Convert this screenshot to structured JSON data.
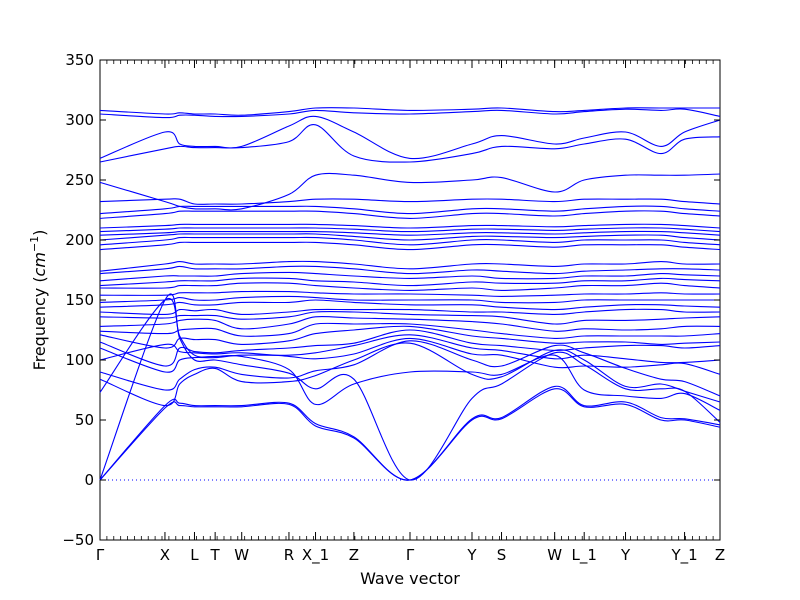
{
  "chart_data": {
    "type": "line",
    "xlabel": "Wave vector",
    "ylabel": "Frequency (cm⁻¹)",
    "ylabel_main": "Frequency (",
    "ylabel_unit": "cm",
    "ylabel_exp": "−1",
    "ylabel_close": ")",
    "ylim": [
      -50,
      350
    ],
    "yticks": [
      -50,
      0,
      50,
      100,
      150,
      200,
      250,
      300,
      350
    ],
    "xlim": [
      0,
      21
    ],
    "kpoints": [
      {
        "label": "Γ",
        "x": 0
      },
      {
        "label": "X",
        "x": 2.2
      },
      {
        "label": "L",
        "x": 3.2
      },
      {
        "label": "T",
        "x": 3.9
      },
      {
        "label": "W",
        "x": 4.8
      },
      {
        "label": "R",
        "x": 6.4
      },
      {
        "label": "X_1",
        "x": 7.3
      },
      {
        "label": "Z",
        "x": 8.6
      },
      {
        "label": "Γ",
        "x": 10.5
      },
      {
        "label": "Y",
        "x": 12.6
      },
      {
        "label": "S",
        "x": 13.6
      },
      {
        "label": "W",
        "x": 15.4
      },
      {
        "label": "L_1",
        "x": 16.4
      },
      {
        "label": "Y",
        "x": 17.8
      },
      {
        "label": "Y_1",
        "x": 19.8
      },
      {
        "label": "Z",
        "x": 21
      }
    ],
    "zero_line": 0,
    "line_color": "#0000ff",
    "series": [
      {
        "values": [
          0,
          62,
          64,
          62,
          62,
          62,
          64,
          47,
          36,
          0,
          51,
          52,
          78,
          62,
          65,
          52,
          51,
          46
        ]
      },
      {
        "values": [
          0,
          60,
          62,
          61,
          61,
          61,
          63,
          45,
          35,
          0,
          50,
          51,
          76,
          61,
          63,
          50,
          50,
          44
        ]
      },
      {
        "values": [
          0,
          150,
          118,
          100,
          100,
          96,
          89,
          76,
          84,
          0,
          68,
          80,
          106,
          96,
          76,
          76,
          74,
          48
        ]
      },
      {
        "values": [
          73,
          150,
          120,
          104,
          103,
          103,
          92,
          63,
          80,
          90,
          90,
          88,
          104,
          75,
          70,
          68,
          72,
          58
        ]
      },
      {
        "values": [
          84,
          62,
          80,
          88,
          93,
          82,
          82,
          87,
          100,
          114,
          88,
          86,
          108,
          100,
          78,
          80,
          74,
          65
        ]
      },
      {
        "values": [
          90,
          75,
          84,
          92,
          94,
          88,
          85,
          91,
          96,
          116,
          100,
          95,
          112,
          106,
          93,
          84,
          82,
          70
        ]
      },
      {
        "values": [
          100,
          113,
          107,
          106,
          105,
          106,
          103,
          101,
          105,
          118,
          105,
          104,
          94,
          95,
          94,
          96,
          97,
          88
        ]
      },
      {
        "values": [
          110,
          90,
          100,
          102,
          102,
          104,
          104,
          106,
          112,
          121,
          110,
          108,
          101,
          104,
          101,
          98,
          98,
          100
        ]
      },
      {
        "values": [
          115,
          95,
          110,
          107,
          106,
          108,
          110,
          112,
          114,
          125,
          114,
          112,
          108,
          110,
          112,
          112,
          110,
          112
        ]
      },
      {
        "values": [
          121,
          110,
          118,
          117,
          117,
          113,
          116,
          122,
          125,
          128,
          120,
          118,
          114,
          115,
          115,
          113,
          114,
          115
        ]
      },
      {
        "values": [
          124,
          122,
          125,
          126,
          126,
          120,
          122,
          130,
          130,
          130,
          125,
          122,
          118,
          120,
          120,
          120,
          120,
          122
        ]
      },
      {
        "values": [
          128,
          130,
          133,
          134,
          133,
          126,
          130,
          136,
          135,
          134,
          132,
          130,
          124,
          126,
          125,
          126,
          128,
          128
        ]
      },
      {
        "values": [
          136,
          135,
          137,
          137,
          137,
          134,
          136,
          140,
          140,
          138,
          137,
          136,
          130,
          133,
          133,
          134,
          135,
          136
        ]
      },
      {
        "values": [
          140,
          138,
          142,
          141,
          142,
          138,
          140,
          142,
          142,
          142,
          140,
          140,
          138,
          140,
          142,
          142,
          140,
          140
        ]
      },
      {
        "values": [
          144,
          146,
          148,
          146,
          146,
          148,
          148,
          150,
          148,
          146,
          146,
          144,
          142,
          144,
          146,
          146,
          145,
          144
        ]
      },
      {
        "values": [
          148,
          150,
          152,
          150,
          150,
          152,
          153,
          152,
          150,
          150,
          150,
          148,
          148,
          150,
          150,
          150,
          150,
          150
        ]
      },
      {
        "values": [
          154,
          154,
          156,
          156,
          156,
          157,
          157,
          156,
          155,
          155,
          154,
          153,
          154,
          155,
          155,
          156,
          155,
          155
        ]
      },
      {
        "values": [
          160,
          160,
          162,
          162,
          162,
          164,
          164,
          162,
          160,
          158,
          160,
          158,
          160,
          162,
          162,
          164,
          162,
          160
        ]
      },
      {
        "values": [
          162,
          165,
          166,
          166,
          166,
          168,
          168,
          166,
          165,
          162,
          165,
          164,
          164,
          166,
          166,
          168,
          167,
          166
        ]
      },
      {
        "values": [
          166,
          170,
          170,
          170,
          170,
          172,
          173,
          172,
          170,
          168,
          170,
          168,
          168,
          170,
          170,
          172,
          171,
          170
        ]
      },
      {
        "values": [
          172,
          176,
          178,
          176,
          176,
          176,
          178,
          178,
          176,
          172,
          175,
          174,
          172,
          174,
          175,
          176,
          176,
          175
        ]
      },
      {
        "values": [
          174,
          180,
          182,
          180,
          180,
          180,
          182,
          182,
          180,
          176,
          180,
          180,
          178,
          180,
          180,
          182,
          180,
          180
        ]
      },
      {
        "values": [
          192,
          196,
          198,
          198,
          198,
          198,
          198,
          198,
          196,
          192,
          196,
          196,
          194,
          196,
          196,
          196,
          194,
          192
        ]
      },
      {
        "values": [
          196,
          200,
          202,
          202,
          202,
          202,
          202,
          202,
          200,
          196,
          200,
          200,
          198,
          200,
          200,
          200,
          198,
          196
        ]
      },
      {
        "values": [
          200,
          204,
          205,
          205,
          205,
          205,
          205,
          205,
          203,
          200,
          203,
          203,
          202,
          203,
          204,
          204,
          202,
          200
        ]
      },
      {
        "values": [
          204,
          206,
          207,
          207,
          207,
          207,
          207,
          207,
          206,
          204,
          206,
          206,
          205,
          206,
          207,
          207,
          206,
          204
        ]
      },
      {
        "values": [
          207,
          209,
          210,
          210,
          210,
          210,
          210,
          210,
          209,
          207,
          209,
          209,
          208,
          209,
          210,
          210,
          209,
          207
        ]
      },
      {
        "values": [
          210,
          212,
          213,
          213,
          213,
          213,
          213,
          213,
          212,
          210,
          212,
          212,
          211,
          212,
          213,
          213,
          212,
          210
        ]
      },
      {
        "values": [
          218,
          222,
          224,
          224,
          224,
          224,
          224,
          224,
          222,
          218,
          222,
          222,
          220,
          222,
          224,
          224,
          222,
          220
        ]
      },
      {
        "values": [
          222,
          226,
          228,
          228,
          228,
          228,
          228,
          228,
          226,
          222,
          226,
          226,
          224,
          226,
          228,
          228,
          226,
          224
        ]
      },
      {
        "values": [
          232,
          234,
          234,
          230,
          230,
          230,
          232,
          234,
          234,
          232,
          234,
          234,
          232,
          234,
          234,
          234,
          232,
          230
        ]
      },
      {
        "values": [
          248,
          232,
          228,
          226,
          226,
          226,
          238,
          254,
          254,
          248,
          250,
          252,
          240,
          250,
          254,
          254,
          254,
          255
        ]
      },
      {
        "values": [
          265,
          276,
          278,
          277,
          277,
          277,
          282,
          296,
          270,
          265,
          272,
          278,
          276,
          280,
          284,
          272,
          284,
          286
        ]
      },
      {
        "values": [
          268,
          290,
          280,
          278,
          278,
          278,
          295,
          303,
          290,
          268,
          280,
          287,
          280,
          285,
          290,
          278,
          290,
          300
        ]
      },
      {
        "values": [
          305,
          302,
          304,
          304,
          303,
          303,
          305,
          308,
          306,
          305,
          307,
          308,
          305,
          307,
          309,
          308,
          309,
          303
        ]
      },
      {
        "values": [
          308,
          305,
          306,
          305,
          305,
          304,
          307,
          310,
          310,
          308,
          309,
          310,
          307,
          308,
          310,
          310,
          310,
          310
        ]
      }
    ]
  }
}
